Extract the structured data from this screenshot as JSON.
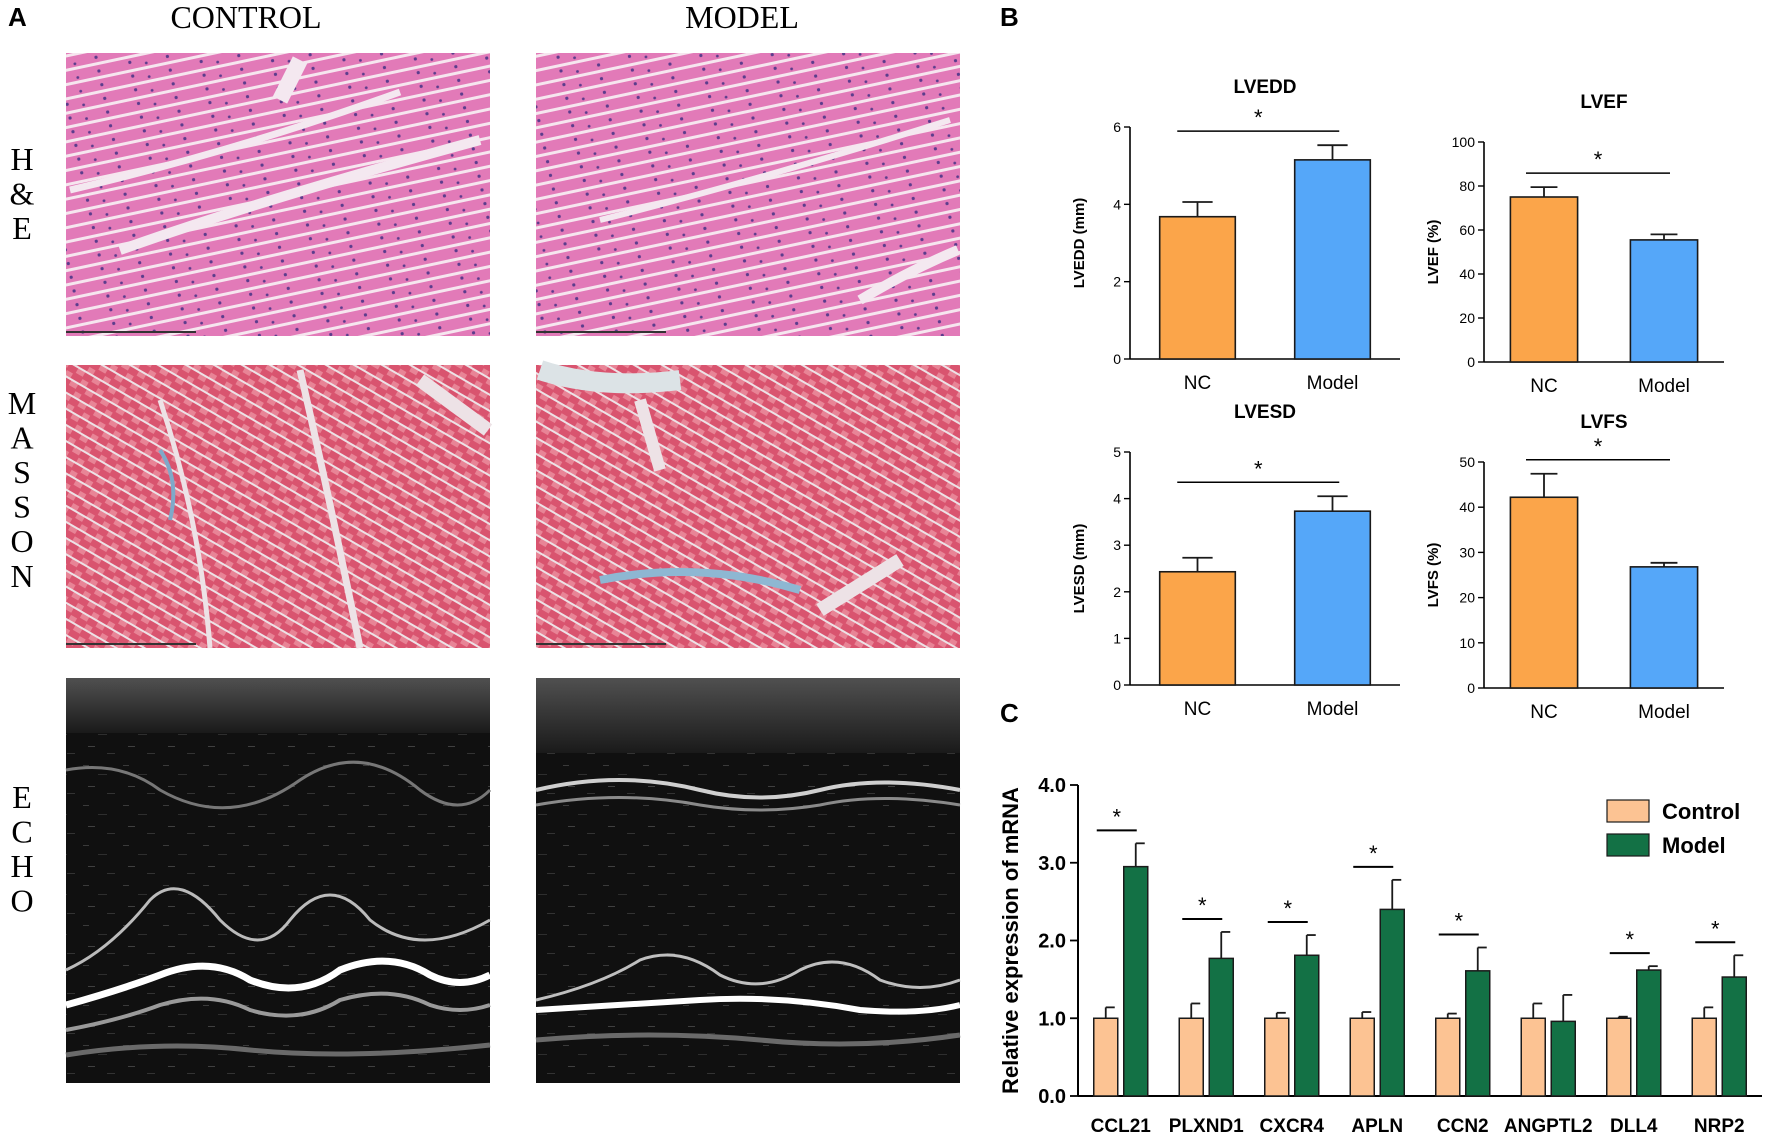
{
  "figure": {
    "panel_letters": [
      "A",
      "B",
      "C"
    ],
    "panel_a": {
      "column_titles": [
        "CONTROL",
        "MODEL"
      ],
      "row_labels": [
        "H\n&\nE",
        "M\nA\nS\nS\nO\nN",
        "E\nC\nH\nO"
      ]
    }
  },
  "colors": {
    "nc": "#FBA54A",
    "model_blue": "#55A7F9",
    "control_light": "#FCC393",
    "model_green": "#137145",
    "he_pink": "#E27AB8",
    "masson_red": "#D9546F"
  },
  "chart_data": [
    {
      "type": "bar",
      "title": "LVEDD",
      "ylabel": "LVEDD (mm)",
      "categories": [
        "NC",
        "Model"
      ],
      "values": [
        3.68,
        5.15
      ],
      "errors": [
        0.38,
        0.38
      ],
      "ylim": [
        0,
        6
      ],
      "yticks": [
        "0",
        "2",
        "4",
        "6"
      ],
      "significance": "*"
    },
    {
      "type": "bar",
      "title": "LVEF",
      "ylabel": "LVEF (%)",
      "categories": [
        "NC",
        "Model"
      ],
      "values": [
        75,
        55.5
      ],
      "errors": [
        4.5,
        2.5
      ],
      "ylim": [
        0,
        100
      ],
      "yticks": [
        "0",
        "20",
        "40",
        "60",
        "80",
        "100"
      ],
      "significance": "*"
    },
    {
      "type": "bar",
      "title": "LVESD",
      "ylabel": "LVESD (mm)",
      "categories": [
        "NC",
        "Model"
      ],
      "values": [
        2.43,
        3.73
      ],
      "errors": [
        0.3,
        0.32
      ],
      "ylim": [
        0,
        5
      ],
      "yticks": [
        "0",
        "1",
        "2",
        "3",
        "4",
        "5"
      ],
      "significance": "*"
    },
    {
      "type": "bar",
      "title": "LVFS",
      "ylabel": "LVFS (%)",
      "categories": [
        "NC",
        "Model"
      ],
      "values": [
        42.2,
        26.8
      ],
      "errors": [
        5.2,
        0.9
      ],
      "ylim": [
        0,
        50
      ],
      "yticks": [
        "0",
        "10",
        "20",
        "30",
        "40",
        "50"
      ],
      "significance": "*"
    },
    {
      "type": "bar",
      "ylabel": "Relative expression of mRNA",
      "categories": [
        "CCL21",
        "PLXND1",
        "CXCR4",
        "APLN",
        "CCN2",
        "ANGPTL2",
        "DLL4",
        "NRP2"
      ],
      "series": [
        {
          "name": "Control",
          "values": [
            1.0,
            1.0,
            1.0,
            1.0,
            1.0,
            1.0,
            1.0,
            1.0
          ],
          "errors": [
            0.14,
            0.19,
            0.07,
            0.08,
            0.06,
            0.19,
            0.02,
            0.14
          ]
        },
        {
          "name": "Model",
          "values": [
            2.95,
            1.77,
            1.81,
            2.4,
            1.61,
            0.96,
            1.62,
            1.53
          ],
          "errors": [
            0.3,
            0.34,
            0.26,
            0.38,
            0.3,
            0.34,
            0.05,
            0.28
          ]
        }
      ],
      "significant": [
        true,
        true,
        true,
        true,
        true,
        false,
        true,
        true
      ],
      "significance": "*",
      "ylim": [
        0,
        4
      ],
      "yticks": [
        "0.0",
        "1.0",
        "2.0",
        "3.0",
        "4.0"
      ],
      "legend": "top-right"
    }
  ]
}
